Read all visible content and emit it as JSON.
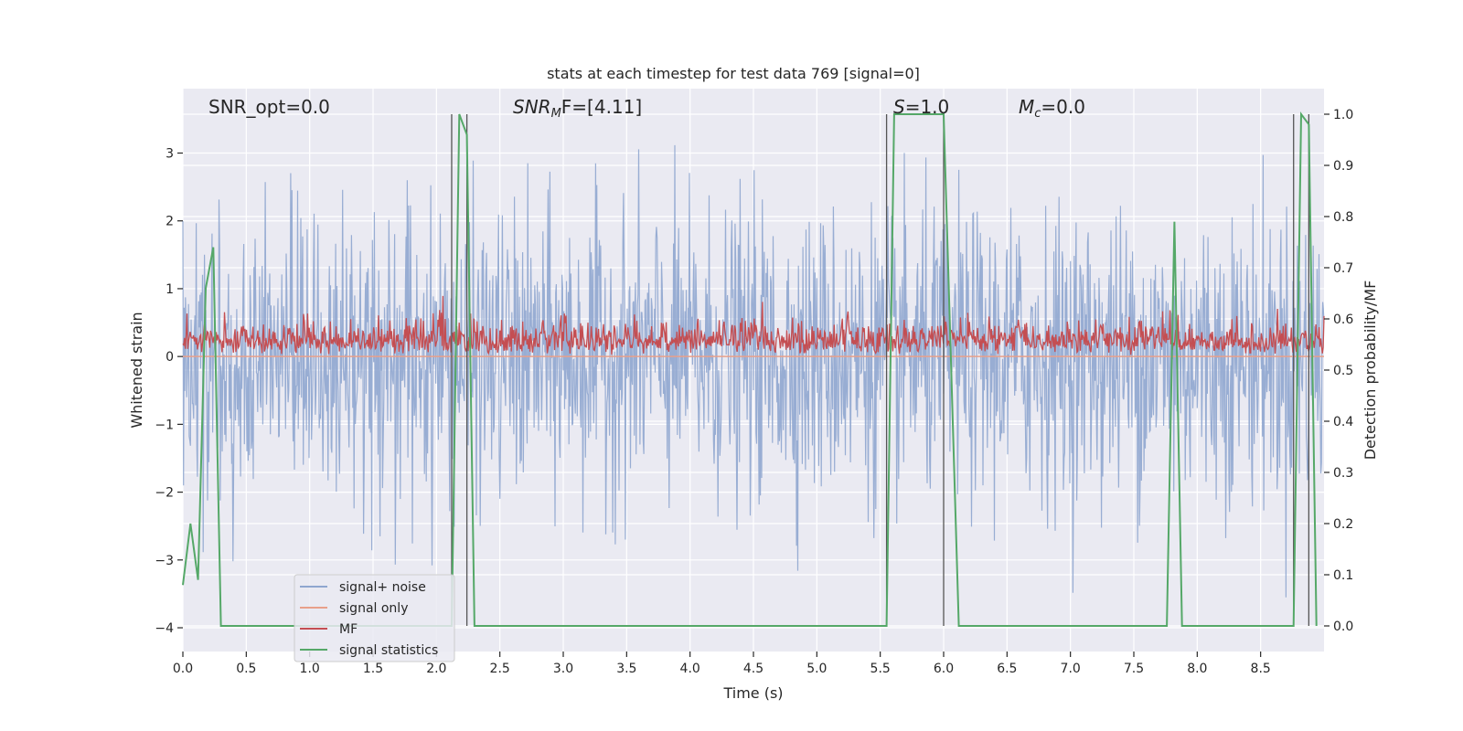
{
  "chart_data": {
    "type": "line",
    "title": "stats at each timestep for test data 769 [signal=0]",
    "xlabel": "Time (s)",
    "ylabel": "Whitened strain",
    "y2label": "Detection probability/MF",
    "xlim": [
      0.0,
      9.0
    ],
    "ylim": [
      -4.35,
      3.95
    ],
    "y2lim": [
      -0.05,
      1.05
    ],
    "xticks": [
      "0.0",
      "0.5",
      "1.0",
      "1.5",
      "2.0",
      "2.5",
      "3.0",
      "3.5",
      "4.0",
      "4.5",
      "5.0",
      "5.5",
      "6.0",
      "6.5",
      "7.0",
      "7.5",
      "8.0",
      "8.5"
    ],
    "yticks": [
      "3",
      "2",
      "1",
      "0",
      "−1",
      "−2",
      "−3",
      "−4"
    ],
    "y2ticks": [
      "1.0",
      "0.9",
      "0.8",
      "0.7",
      "0.6",
      "0.5",
      "0.4",
      "0.3",
      "0.2",
      "0.1",
      "0.0"
    ],
    "grid": true,
    "legend_position": "bottom-left",
    "annotations": {
      "snr_opt": "SNR_opt=0.0",
      "snr_mf_main": "SNR",
      "snr_mf_sub": "M",
      "snr_mf_rest": "F=[4.11]",
      "s_main": "S",
      "s_rest": "=1.0",
      "mc_main": "M",
      "mc_sub": "c",
      "mc_rest": "=0.0"
    },
    "series": [
      {
        "name": "signal+ noise",
        "color": "#8fa6cf",
        "kind": "noise",
        "amplitude_range": [
          -3.7,
          3.5
        ]
      },
      {
        "name": "signal only",
        "color": "#e8a08a",
        "values_constant": 0.0
      },
      {
        "name": "MF",
        "color": "#c44e52",
        "kind": "mf",
        "range": [
          0.0,
          0.95
        ]
      },
      {
        "name": "signal statistics",
        "color": "#55a868",
        "axis": "right",
        "x": [
          0.0,
          0.06,
          0.12,
          0.18,
          0.24,
          0.3,
          2.12,
          2.18,
          2.24,
          2.3,
          5.55,
          5.61,
          5.67,
          6.0,
          6.06,
          6.12,
          7.76,
          7.82,
          7.88,
          8.76,
          8.82,
          8.88,
          8.94
        ],
        "values": [
          0.08,
          0.2,
          0.09,
          0.66,
          0.74,
          0.0,
          0.0,
          1.0,
          0.96,
          0.0,
          0.0,
          1.0,
          1.0,
          1.0,
          0.5,
          0.0,
          0.0,
          0.79,
          0.0,
          0.0,
          1.0,
          0.98,
          0.0
        ]
      }
    ],
    "vlines": [
      2.12,
      2.24,
      5.55,
      6.0,
      8.76,
      8.88
    ]
  }
}
